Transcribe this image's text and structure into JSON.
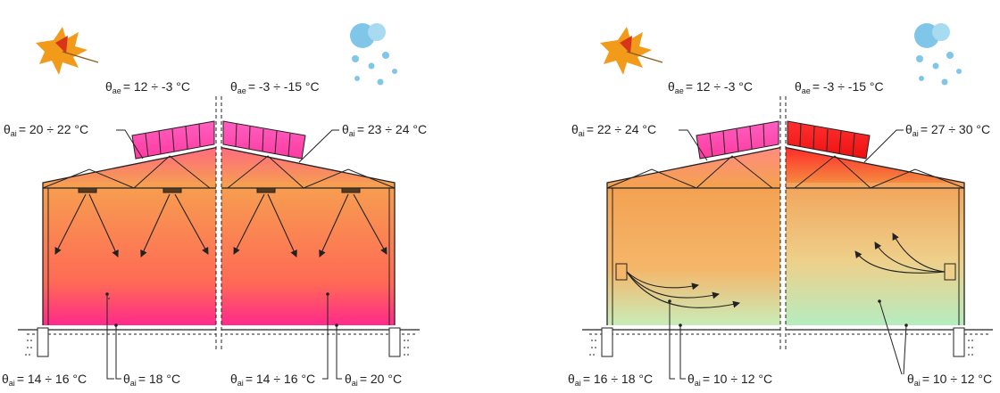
{
  "left_diagram": {
    "exterior": {
      "left": {
        "symbol": "θ",
        "sub": "ae",
        "value": "= 12 ÷ -3 °C"
      },
      "right": {
        "symbol": "θ",
        "sub": "ae",
        "value": "= -3 ÷ -15 °C"
      }
    },
    "roof": {
      "left": {
        "symbol": "θ",
        "sub": "ai",
        "value": "= 20 ÷ 22 °C"
      },
      "right": {
        "symbol": "θ",
        "sub": "ai",
        "value": "= 23 ÷ 24 °C"
      }
    },
    "bottom": [
      {
        "symbol": "θ",
        "sub": "ai",
        "value": "= 14 ÷ 16 °C"
      },
      {
        "symbol": "θ",
        "sub": "ai",
        "value": "= 18 °C"
      },
      {
        "symbol": "θ",
        "sub": "ai",
        "value": "= 14 ÷ 16 °C"
      },
      {
        "symbol": "θ",
        "sub": "ai",
        "value": "= 20 °C"
      }
    ]
  },
  "right_diagram": {
    "exterior": {
      "left": {
        "symbol": "θ",
        "sub": "ae",
        "value": "= 12 ÷ -3 °C"
      },
      "right": {
        "symbol": "θ",
        "sub": "ae",
        "value": "= -3 ÷ -15 °C"
      }
    },
    "roof": {
      "left": {
        "symbol": "θ",
        "sub": "ai",
        "value": "= 22 ÷ 24 °C"
      },
      "right": {
        "symbol": "θ",
        "sub": "ai",
        "value": "= 27 ÷ 30 °C"
      }
    },
    "bottom": [
      {
        "symbol": "θ",
        "sub": "ai",
        "value": "= 16 ÷ 18 °C"
      },
      {
        "symbol": "θ",
        "sub": "ai",
        "value": "= 10 ÷ 12 °C"
      },
      {
        "symbol": "θ",
        "sub": "ai",
        "value": "= 10 ÷ 12 °C"
      }
    ]
  },
  "icons": [
    "autumn-leaf-icon",
    "snowflake-icon"
  ],
  "colors": {
    "warm_top": "#ff8a4a",
    "warm_mid": "#ff7a45",
    "hot_bottom": "#ff2a8a",
    "magenta_panels": "#ff4fb0",
    "red_panels": "#ff2020",
    "cool_bottom": "#b8ecc0",
    "orange_fill": "#f5a35a"
  }
}
